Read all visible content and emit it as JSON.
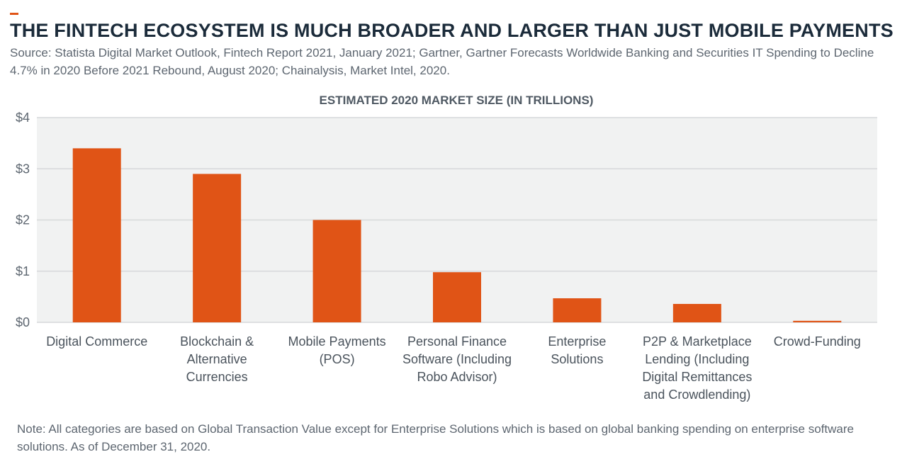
{
  "header": {
    "title": "THE FINTECH ECOSYSTEM IS MUCH BROADER AND LARGER THAN JUST MOBILE PAYMENTS",
    "source": "Source: Statista Digital Market Outlook, Fintech Report 2021, January 2021; Gartner, Gartner Forecasts Worldwide Banking and Securities IT Spending to Decline 4.7% in 2020 Before 2021 Rebound, August 2020; Chainalysis, Market Intel, 2020."
  },
  "footer": {
    "note": "Note: All categories are based on Global Transaction Value except for Enterprise Solutions which is based on global banking spending on enterprise software solutions. As of December 31, 2020."
  },
  "colors": {
    "accent": "#e05416",
    "bar": "#e05416",
    "plot_background": "#f1f2f2",
    "gridline": "#d6d8da"
  },
  "chart_data": {
    "type": "bar",
    "title": "ESTIMATED 2020 MARKET SIZE (IN TRILLIONS)",
    "categories": [
      [
        "Digital Commerce"
      ],
      [
        "Blockchain &",
        "Alternative",
        "Currencies"
      ],
      [
        "Mobile Payments",
        "(POS)"
      ],
      [
        "Personal Finance",
        "Software (Including",
        "Robo Advisor)"
      ],
      [
        "Enterprise",
        "Solutions"
      ],
      [
        "P2P & Marketplace",
        "Lending (Including",
        "Digital Remittances",
        "and Crowdlending)"
      ],
      [
        "Crowd-Funding"
      ]
    ],
    "values": [
      3.4,
      2.9,
      2.0,
      0.98,
      0.47,
      0.36,
      0.03
    ],
    "yticks": [
      0,
      1,
      2,
      3,
      4
    ],
    "ytick_labels": [
      "$0",
      "$1",
      "$2",
      "$3",
      "$4"
    ],
    "ylim": [
      0,
      4
    ],
    "xlabel": "",
    "ylabel": "",
    "grid": true
  }
}
